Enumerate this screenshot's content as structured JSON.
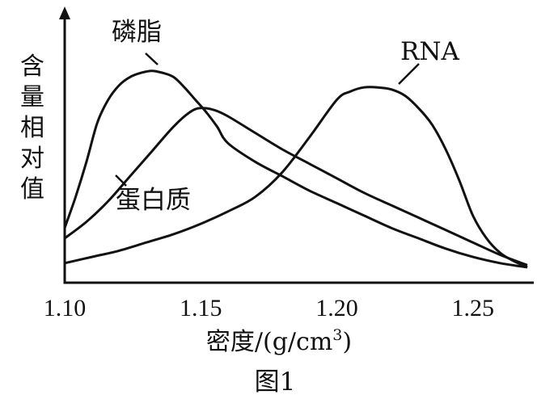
{
  "chart_data": {
    "type": "line",
    "title": "",
    "caption": "图1",
    "xlabel": "密度/(g/cm",
    "xlabel_sup": "3",
    "xlabel_close": ")",
    "ylabel": "含量相对值",
    "xlim": [
      1.1,
      1.27
    ],
    "ylim": [
      0,
      1.0
    ],
    "x_ticks": [
      1.1,
      1.15,
      1.2,
      1.25
    ],
    "x_tick_labels": [
      "1.10",
      "1.15",
      "1.20",
      "1.25"
    ],
    "grid": false,
    "series": [
      {
        "name": "磷脂",
        "x": [
          1.1,
          1.104,
          1.108,
          1.112,
          1.116,
          1.12,
          1.124,
          1.128,
          1.132,
          1.136,
          1.14,
          1.144,
          1.148,
          1.152,
          1.156,
          1.16,
          1.17,
          1.18,
          1.19,
          1.2,
          1.21,
          1.22,
          1.23,
          1.24,
          1.25,
          1.26,
          1.27
        ],
        "values": [
          0.21,
          0.36,
          0.53,
          0.72,
          0.83,
          0.9,
          0.94,
          0.96,
          0.97,
          0.96,
          0.94,
          0.89,
          0.83,
          0.77,
          0.7,
          0.62,
          0.53,
          0.46,
          0.39,
          0.33,
          0.27,
          0.21,
          0.16,
          0.11,
          0.07,
          0.04,
          0.02
        ]
      },
      {
        "name": "蛋白质",
        "x": [
          1.1,
          1.108,
          1.116,
          1.124,
          1.132,
          1.14,
          1.146,
          1.15,
          1.155,
          1.16,
          1.17,
          1.18,
          1.19,
          1.2,
          1.21,
          1.22,
          1.23,
          1.24,
          1.25,
          1.26,
          1.27
        ],
        "values": [
          0.16,
          0.24,
          0.34,
          0.46,
          0.58,
          0.7,
          0.77,
          0.79,
          0.78,
          0.75,
          0.67,
          0.59,
          0.52,
          0.45,
          0.38,
          0.32,
          0.26,
          0.2,
          0.14,
          0.08,
          0.03
        ]
      },
      {
        "name": "RNA",
        "x": [
          1.1,
          1.11,
          1.12,
          1.13,
          1.14,
          1.15,
          1.16,
          1.17,
          1.18,
          1.19,
          1.2,
          1.205,
          1.21,
          1.215,
          1.22,
          1.225,
          1.23,
          1.235,
          1.24,
          1.245,
          1.25,
          1.255,
          1.26,
          1.265,
          1.27
        ],
        "values": [
          0.04,
          0.07,
          0.1,
          0.14,
          0.18,
          0.23,
          0.29,
          0.36,
          0.48,
          0.65,
          0.83,
          0.87,
          0.89,
          0.89,
          0.88,
          0.85,
          0.79,
          0.71,
          0.59,
          0.44,
          0.27,
          0.16,
          0.09,
          0.05,
          0.02
        ]
      }
    ],
    "series_labels": [
      "磷脂",
      "RNA",
      "蛋白质"
    ]
  }
}
